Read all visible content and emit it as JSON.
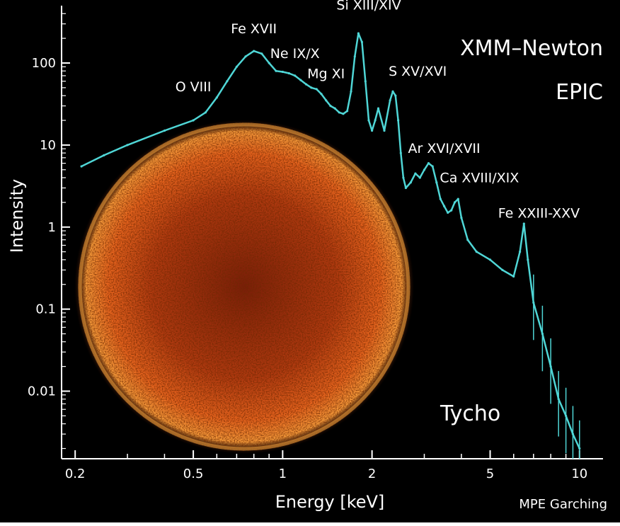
{
  "chart_data": {
    "type": "line",
    "xlabel": "Energy [keV]",
    "ylabel": "Intensity",
    "x_scale": "log",
    "y_scale": "log",
    "xlim": [
      0.18,
      12
    ],
    "ylim": [
      0.0015,
      500
    ],
    "x_ticks": [
      {
        "value": 0.2,
        "label": "0.2"
      },
      {
        "value": 0.5,
        "label": "0.5"
      },
      {
        "value": 1,
        "label": "1"
      },
      {
        "value": 2,
        "label": "2"
      },
      {
        "value": 5,
        "label": "5"
      },
      {
        "value": 10,
        "label": "10"
      }
    ],
    "y_ticks": [
      {
        "value": 100,
        "label": "100"
      },
      {
        "value": 10,
        "label": "10"
      },
      {
        "value": 1,
        "label": "1"
      },
      {
        "value": 0.1,
        "label": "0.1"
      },
      {
        "value": 0.01,
        "label": "0.01"
      }
    ],
    "grid": false,
    "series": [
      {
        "color": "#4fd6d6",
        "x": [
          0.21,
          0.25,
          0.3,
          0.4,
          0.5,
          0.55,
          0.6,
          0.65,
          0.7,
          0.75,
          0.8,
          0.85,
          0.9,
          0.95,
          1.0,
          1.05,
          1.1,
          1.15,
          1.2,
          1.25,
          1.3,
          1.35,
          1.4,
          1.45,
          1.5,
          1.55,
          1.6,
          1.65,
          1.7,
          1.75,
          1.8,
          1.85,
          1.9,
          1.95,
          2.0,
          2.05,
          2.1,
          2.2,
          2.3,
          2.35,
          2.4,
          2.45,
          2.5,
          2.55,
          2.6,
          2.7,
          2.8,
          2.9,
          3.0,
          3.1,
          3.2,
          3.3,
          3.4,
          3.5,
          3.6,
          3.7,
          3.8,
          3.9,
          4.0,
          4.2,
          4.5,
          5.0,
          5.5,
          6.0,
          6.3,
          6.5,
          6.7,
          7.0,
          7.5,
          8.0,
          8.5,
          9.0,
          9.5,
          10.0
        ],
        "y": [
          5.5,
          7.5,
          10,
          15,
          20,
          25,
          38,
          60,
          90,
          120,
          140,
          130,
          100,
          80,
          78,
          75,
          70,
          62,
          55,
          50,
          48,
          42,
          35,
          30,
          28,
          25,
          24,
          26,
          45,
          120,
          230,
          180,
          60,
          20,
          15,
          20,
          28,
          15,
          35,
          45,
          40,
          20,
          8,
          4,
          3,
          3.5,
          4.5,
          4,
          5,
          6,
          5.5,
          3.5,
          2.2,
          1.8,
          1.5,
          1.6,
          2.0,
          2.2,
          1.3,
          0.7,
          0.5,
          0.4,
          0.3,
          0.25,
          0.5,
          1.1,
          0.4,
          0.12,
          0.05,
          0.02,
          0.008,
          0.005,
          0.003,
          0.002
        ]
      }
    ],
    "annotations": [
      {
        "text": "O VIII",
        "x": 0.5,
        "y": 45
      },
      {
        "text": "Fe XVII",
        "x": 0.8,
        "y": 230
      },
      {
        "text": "Ne IX/X",
        "x": 1.1,
        "y": 115
      },
      {
        "text": "Mg XI",
        "x": 1.4,
        "y": 65
      },
      {
        "text": "Si XIII/XIV",
        "x": 1.95,
        "y": 450
      },
      {
        "text": "S XV/XVI",
        "x": 2.85,
        "y": 70
      },
      {
        "text": "Ar XVI/XVII",
        "x": 3.5,
        "y": 8
      },
      {
        "text": "Ca XVIII/XIX",
        "x": 4.6,
        "y": 3.5
      },
      {
        "text": "Fe XXIII-XXV",
        "x": 7.3,
        "y": 1.3
      }
    ]
  },
  "labels": {
    "mission": "XMM–Newton",
    "instrument": "EPIC",
    "object": "Tycho",
    "credit": "MPE Garching"
  },
  "colors": {
    "background": "#000000",
    "spectrum": "#4fd6d6",
    "remnant_core": "#e8641e",
    "remnant_rim": "#f5b04a",
    "axes": "#ffffff"
  }
}
